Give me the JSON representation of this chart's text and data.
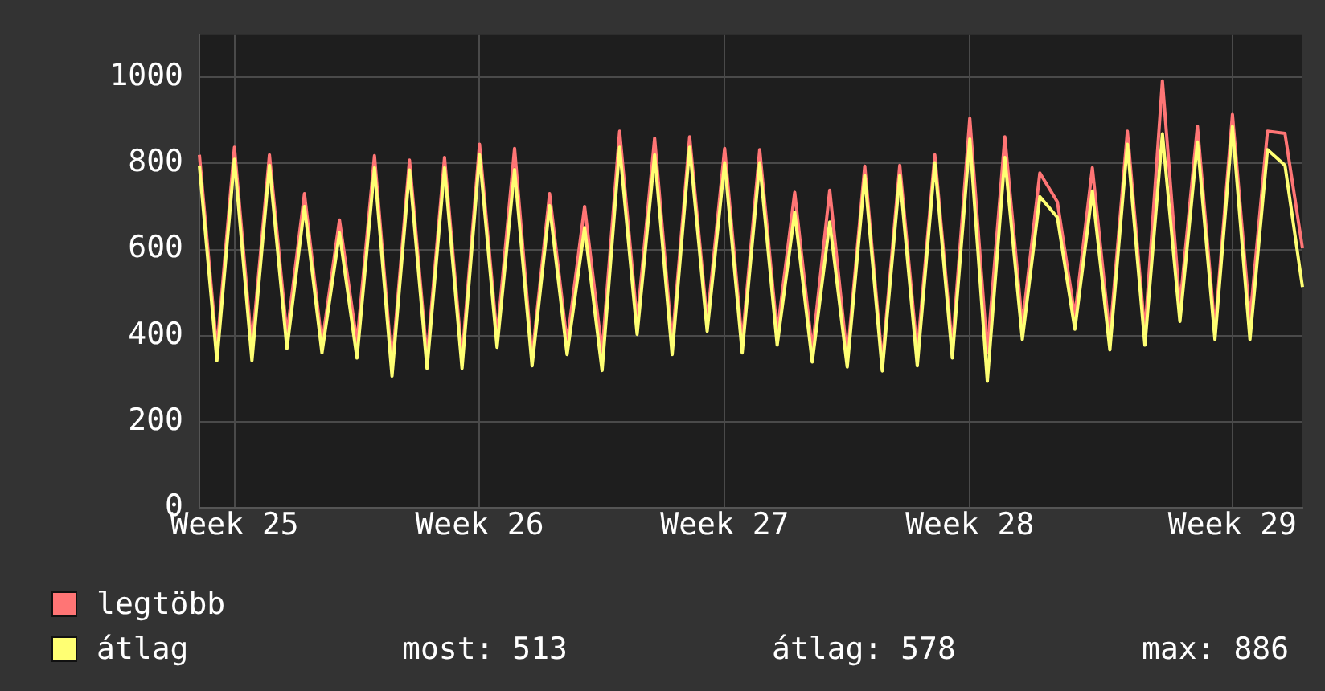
{
  "chart_data": {
    "type": "line",
    "categories": [
      null,
      null,
      "Week 25",
      null,
      null,
      null,
      null,
      null,
      null,
      null,
      null,
      null,
      null,
      null,
      null,
      null,
      "Week 26",
      null,
      null,
      null,
      null,
      null,
      null,
      null,
      null,
      null,
      null,
      null,
      null,
      null,
      "Week 27",
      null,
      null,
      null,
      null,
      null,
      null,
      null,
      null,
      null,
      null,
      null,
      null,
      null,
      "Week 28",
      null,
      null,
      null,
      null,
      null,
      null,
      null,
      null,
      null,
      null,
      null,
      null,
      null,
      null,
      "Week 29",
      null,
      null,
      null,
      null
    ],
    "series": [
      {
        "name": "legtöbb",
        "color": "#ff7575",
        "values": [
          820,
          367,
          838,
          372,
          820,
          402,
          730,
          380,
          669,
          384,
          818,
          329,
          808,
          348,
          814,
          348,
          845,
          397,
          835,
          348,
          730,
          383,
          700,
          361,
          875,
          433,
          859,
          383,
          862,
          433,
          835,
          384,
          832,
          406,
          733,
          366,
          738,
          348,
          794,
          336,
          796,
          360,
          820,
          372,
          905,
          360,
          862,
          424,
          778,
          711,
          445,
          790,
          397,
          875,
          406,
          992,
          469,
          887,
          413,
          914,
          436,
          875,
          870,
          603
        ]
      },
      {
        "name": "átlag",
        "color": "#ffff73",
        "values": [
          795,
          342,
          810,
          342,
          796,
          370,
          700,
          360,
          639,
          348,
          790,
          306,
          785,
          324,
          790,
          324,
          820,
          373,
          786,
          330,
          702,
          356,
          651,
          319,
          838,
          403,
          820,
          356,
          838,
          410,
          802,
          360,
          802,
          378,
          687,
          339,
          664,
          327,
          772,
          318,
          772,
          330,
          802,
          348,
          857,
          294,
          814,
          391,
          723,
          675,
          415,
          736,
          367,
          845,
          378,
          869,
          433,
          850,
          391,
          886,
          391,
          832,
          796,
          513
        ]
      }
    ],
    "ylim": [
      0,
      1100
    ],
    "yticks": [
      0,
      200,
      400,
      600,
      800,
      1000
    ],
    "grid": true,
    "legend": "bottom",
    "annotations": [
      "most: 513",
      "átlag: 578",
      "max: 886"
    ]
  }
}
